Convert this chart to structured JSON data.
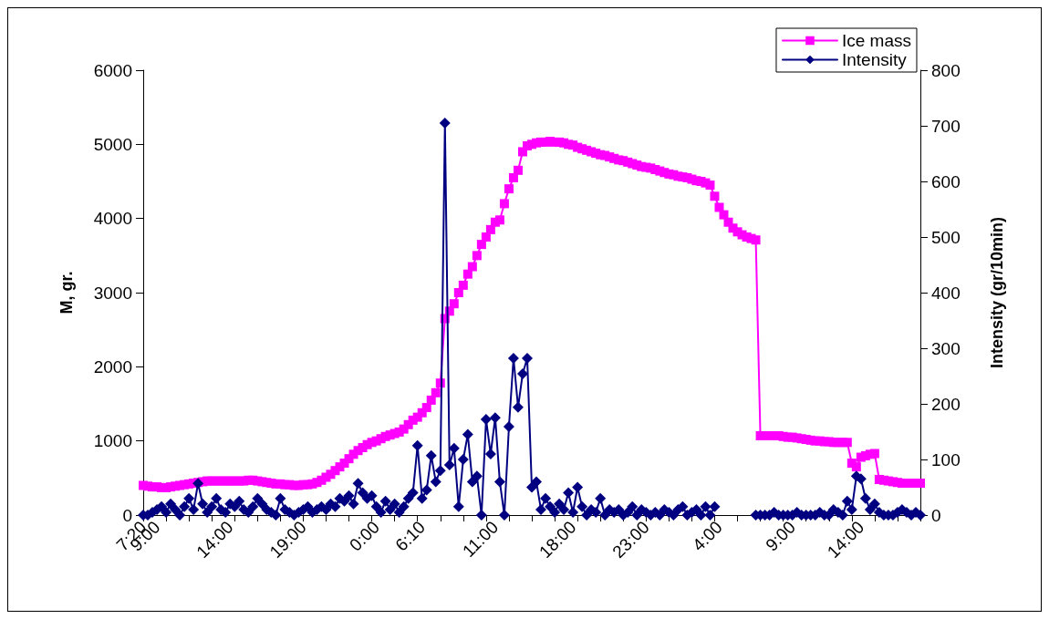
{
  "chart_data": {
    "type": "line",
    "ylabel": "M, gr.",
    "y2label": "Intensity (gr/10min)",
    "categories": [
      "7:20",
      null,
      null,
      "9:00",
      null,
      null,
      null,
      null,
      null,
      null,
      null,
      null,
      null,
      null,
      null,
      null,
      null,
      null,
      null,
      "14:00",
      null,
      null,
      null,
      null,
      null,
      null,
      null,
      null,
      null,
      null,
      null,
      null,
      null,
      null,
      null,
      "19:00",
      null,
      null,
      null,
      null,
      null,
      null,
      null,
      null,
      null,
      null,
      null,
      null,
      null,
      null,
      null,
      "0:00",
      null,
      null,
      null,
      null,
      null,
      null,
      null,
      null,
      null,
      "6:10",
      null,
      null,
      null,
      null,
      null,
      null,
      null,
      null,
      null,
      null,
      null,
      null,
      null,
      null,
      null,
      "11:00",
      null,
      null,
      null,
      null,
      null,
      null,
      null,
      null,
      null,
      null,
      null,
      null,
      null,
      null,
      null,
      null,
      "18:00",
      null,
      null,
      null,
      null,
      null,
      null,
      null,
      null,
      null,
      null,
      null,
      null,
      null,
      null,
      null,
      "23:00",
      null,
      null,
      null,
      null,
      null,
      null,
      null,
      null,
      null,
      null,
      null,
      null,
      null,
      null,
      null,
      "4:00",
      null,
      null,
      null,
      null,
      null,
      null,
      null,
      null,
      null,
      null,
      null,
      null,
      null,
      null,
      null,
      "9:00",
      null,
      null,
      null,
      null,
      null,
      null,
      null,
      null,
      null,
      null,
      null,
      null,
      null,
      null,
      "14:00",
      null,
      null,
      null,
      null,
      null,
      null,
      null,
      null,
      null,
      null,
      null,
      null,
      null
    ],
    "series": [
      {
        "name": "Ice mass",
        "color": "#ff00ff",
        "marker": "square",
        "values": [
          400,
          390,
          380,
          380,
          370,
          370,
          380,
          390,
          400,
          410,
          420,
          430,
          440,
          450,
          460,
          460,
          460,
          460,
          460,
          460,
          460,
          460,
          460,
          470,
          470,
          460,
          450,
          440,
          430,
          420,
          420,
          410,
          410,
          400,
          400,
          410,
          410,
          420,
          440,
          470,
          510,
          550,
          600,
          650,
          700,
          760,
          820,
          870,
          910,
          950,
          980,
          1000,
          1030,
          1060,
          1080,
          1100,
          1120,
          1160,
          1220,
          1280,
          1320,
          1380,
          1450,
          1550,
          1650,
          1780,
          2650,
          2750,
          2850,
          3000,
          3100,
          3250,
          3350,
          3500,
          3650,
          3750,
          3850,
          3950,
          3980,
          4200,
          4400,
          4550,
          4650,
          4900,
          4980,
          5000,
          5020,
          5030,
          5030,
          5040,
          5030,
          5030,
          5020,
          5000,
          4990,
          4960,
          4940,
          4920,
          4900,
          4880,
          4860,
          4850,
          4830,
          4810,
          4790,
          4780,
          4760,
          4740,
          4720,
          4700,
          4690,
          4680,
          4660,
          4640,
          4620,
          4600,
          4590,
          4570,
          4560,
          4550,
          4530,
          4510,
          4500,
          4480,
          4450,
          4300,
          4150,
          4050,
          3950,
          3870,
          3820,
          3780,
          3750,
          3730,
          3710,
          1070,
          1070,
          1070,
          1070,
          1070,
          1060,
          1050,
          1050,
          1040,
          1030,
          1020,
          1010,
          1000,
          1000,
          990,
          990,
          980,
          980,
          980,
          980,
          700,
          650,
          780,
          800,
          820,
          830,
          480,
          470,
          460,
          450,
          440,
          430,
          430,
          430,
          430,
          430
        ]
      },
      {
        "name": "Intensity",
        "color": "#000080",
        "marker": "diamond",
        "axis": "y2",
        "values": [
          0,
          0,
          5,
          10,
          15,
          5,
          20,
          10,
          0,
          15,
          30,
          10,
          57,
          20,
          5,
          15,
          30,
          10,
          5,
          20,
          15,
          25,
          10,
          5,
          15,
          30,
          20,
          10,
          5,
          0,
          30,
          10,
          5,
          0,
          5,
          10,
          15,
          5,
          10,
          15,
          10,
          20,
          15,
          30,
          25,
          35,
          20,
          57,
          40,
          30,
          35,
          15,
          5,
          25,
          10,
          20,
          5,
          15,
          30,
          40,
          125,
          30,
          45,
          107,
          60,
          80,
          705,
          90,
          120,
          15,
          100,
          145,
          60,
          70,
          0,
          172,
          110,
          175,
          60,
          0,
          159,
          282,
          194,
          254,
          282,
          50,
          60,
          10,
          30,
          15,
          5,
          20,
          10,
          40,
          5,
          50,
          15,
          0,
          10,
          5,
          30,
          0,
          10,
          5,
          10,
          0,
          5,
          15,
          0,
          10,
          5,
          0,
          5,
          0,
          10,
          5,
          0,
          10,
          15,
          0,
          5,
          10,
          0,
          15,
          0,
          15,
          null,
          null,
          null,
          null,
          null,
          null,
          null,
          null,
          0,
          0,
          0,
          0,
          5,
          0,
          0,
          0,
          0,
          5,
          0,
          0,
          0,
          0,
          5,
          0,
          0,
          10,
          5,
          0,
          25,
          10,
          70,
          65,
          30,
          10,
          20,
          5,
          0,
          0,
          0,
          5,
          10,
          5,
          0,
          5,
          0
        ]
      }
    ],
    "ylim": [
      0,
      6000
    ],
    "yticks": [
      0,
      1000,
      2000,
      3000,
      4000,
      5000,
      6000
    ],
    "y2lim": [
      0,
      800
    ],
    "y2ticks": [
      0,
      100,
      200,
      300,
      400,
      500,
      600,
      700,
      800
    ],
    "grid": false,
    "legend": "top right",
    "line_style": "solid"
  }
}
